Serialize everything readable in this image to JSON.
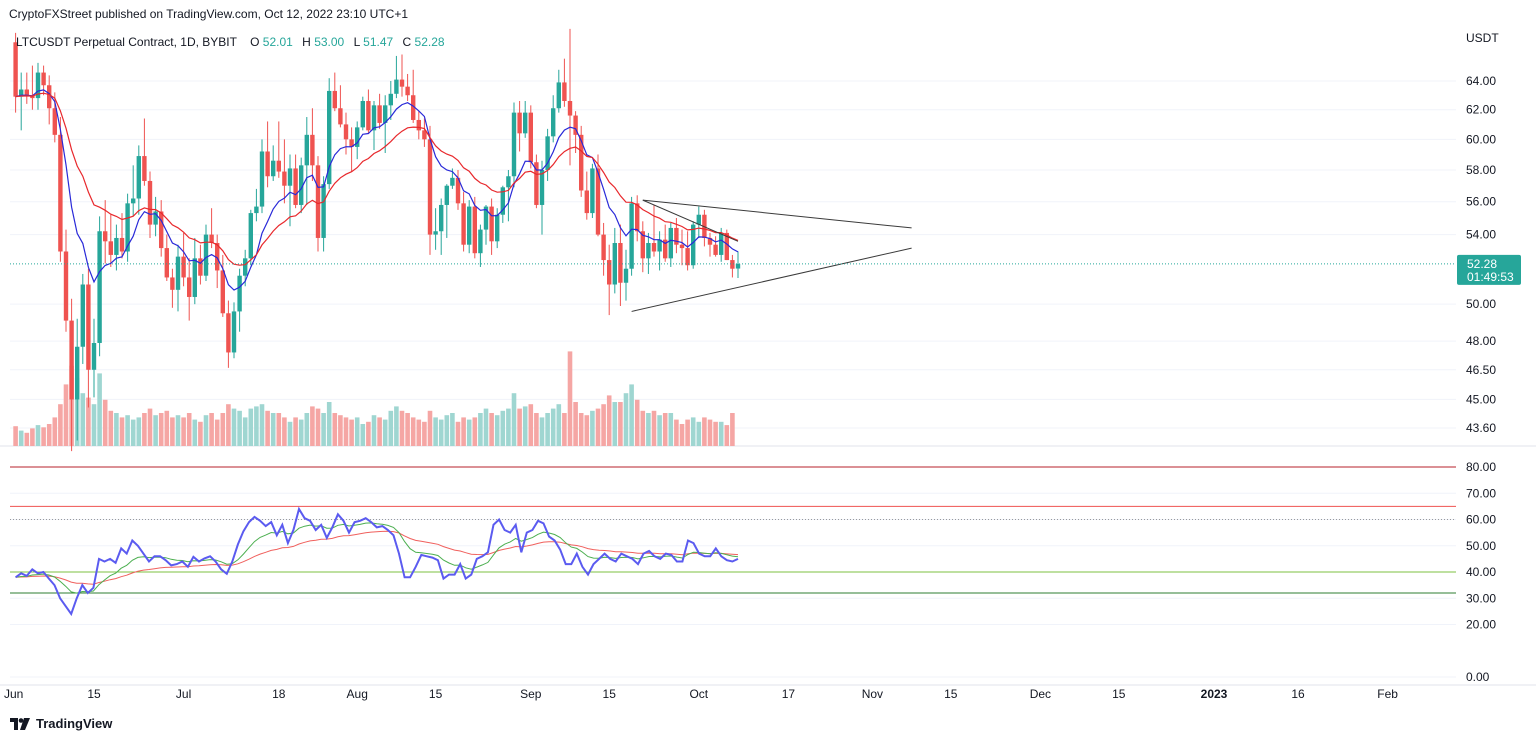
{
  "header": {
    "published_line": "CryptoFXStreet published on TradingView.com, Oct 12, 2022 23:10 UTC+1"
  },
  "legend": {
    "symbol_line": "LTCUSDT Perpetual Contract, 1D, BYBIT",
    "open_label": "O",
    "open_value": "52.01",
    "high_label": "H",
    "high_value": "53.00",
    "low_label": "L",
    "low_value": "51.47",
    "close_label": "C",
    "close_value": "52.28"
  },
  "price_axis": {
    "currency": "USDT",
    "ticks": [
      "64.00",
      "62.00",
      "60.00",
      "58.00",
      "56.00",
      "54.00",
      "50.00",
      "48.00",
      "46.50",
      "45.00",
      "43.60"
    ],
    "last_price": "52.28",
    "countdown": "01:49:53"
  },
  "rsi_axis": {
    "ticks": [
      "80.00",
      "70.00",
      "60.00",
      "50.00",
      "40.00",
      "30.00",
      "20.00",
      "0.00"
    ]
  },
  "time_axis": {
    "ticks": [
      "Jun",
      "15",
      "Jul",
      "18",
      "Aug",
      "15",
      "Sep",
      "15",
      "Oct",
      "17",
      "Nov",
      "15",
      "Dec",
      "15",
      "2023",
      "16",
      "Feb"
    ]
  },
  "footer": {
    "brand": "TradingView"
  },
  "colors": {
    "up": "#26a69a",
    "down": "#ef5350",
    "up_volume": "#9fd6d1",
    "down_volume": "#f5a6a4",
    "ema_fast": "#2929d8",
    "ema_slow": "#e8282c",
    "rsi_line": "#5b5bf0",
    "rsi_signal_green": "#4caf50",
    "rsi_signal_red": "#f0605d"
  },
  "chart_data": [
    {
      "type": "candlestick",
      "title": "LTCUSDT Perpetual Contract, 1D, BYBIT",
      "ylabel": "USDT",
      "y_scale": "log",
      "x_range": [
        "2022-06-01",
        "2023-02-15"
      ],
      "ylim": [
        43.0,
        68.0
      ],
      "last_price": 52.28,
      "candles": [
        [
          66.8,
          67.5,
          61.8,
          62.9
        ],
        [
          62.9,
          64.6,
          60.6,
          63.4
        ],
        [
          63.4,
          64.6,
          62.4,
          63.0
        ],
        [
          63.0,
          65.1,
          62.0,
          62.8
        ],
        [
          62.8,
          65.3,
          62.0,
          64.6
        ],
        [
          64.6,
          65.1,
          63.0,
          63.7
        ],
        [
          63.7,
          64.4,
          61.0,
          62.1
        ],
        [
          62.1,
          63.2,
          59.8,
          60.3
        ],
        [
          60.3,
          61.5,
          52.4,
          53.0
        ],
        [
          53.0,
          54.3,
          48.5,
          49.1
        ],
        [
          49.1,
          50.3,
          42.5,
          45.0
        ],
        [
          45.0,
          49.2,
          43.0,
          47.7
        ],
        [
          47.7,
          51.7,
          46.8,
          51.1
        ],
        [
          51.1,
          52.0,
          44.6,
          46.5
        ],
        [
          46.5,
          49.2,
          45.1,
          47.9
        ],
        [
          47.9,
          55.1,
          47.2,
          54.2
        ],
        [
          54.2,
          56.1,
          52.3,
          53.6
        ],
        [
          53.6,
          55.2,
          52.1,
          52.8
        ],
        [
          52.8,
          54.6,
          51.9,
          53.8
        ],
        [
          53.8,
          55.3,
          52.6,
          53.0
        ],
        [
          53.0,
          56.5,
          52.4,
          55.9
        ],
        [
          55.9,
          58.3,
          55.1,
          56.2
        ],
        [
          56.2,
          59.6,
          55.2,
          58.9
        ],
        [
          58.9,
          61.4,
          57.0,
          57.3
        ],
        [
          57.3,
          57.9,
          53.8,
          54.6
        ],
        [
          54.6,
          56.3,
          53.9,
          55.4
        ],
        [
          55.4,
          56.1,
          52.7,
          53.2
        ],
        [
          53.2,
          54.0,
          51.3,
          51.5
        ],
        [
          51.5,
          52.0,
          49.8,
          50.8
        ],
        [
          50.8,
          53.4,
          49.6,
          52.7
        ],
        [
          52.7,
          54.1,
          51.0,
          51.5
        ],
        [
          51.5,
          52.6,
          49.1,
          50.4
        ],
        [
          50.4,
          53.8,
          50.0,
          52.6
        ],
        [
          52.6,
          53.4,
          51.1,
          51.6
        ],
        [
          51.6,
          54.6,
          51.3,
          54.0
        ],
        [
          54.0,
          55.6,
          53.2,
          53.5
        ],
        [
          53.5,
          54.0,
          50.9,
          51.9
        ],
        [
          51.9,
          52.8,
          49.3,
          49.5
        ],
        [
          49.5,
          50.2,
          46.6,
          47.4
        ],
        [
          47.4,
          50.1,
          47.1,
          49.6
        ],
        [
          49.6,
          52.0,
          48.5,
          51.6
        ],
        [
          51.6,
          53.1,
          51.0,
          52.6
        ],
        [
          52.6,
          55.5,
          52.2,
          55.3
        ],
        [
          55.3,
          56.8,
          54.8,
          55.7
        ],
        [
          55.7,
          60.0,
          55.3,
          59.2
        ],
        [
          59.2,
          61.2,
          56.9,
          57.6
        ],
        [
          57.6,
          59.6,
          57.3,
          58.6
        ],
        [
          58.6,
          61.2,
          57.5,
          57.9
        ],
        [
          57.9,
          60.0,
          55.9,
          57.0
        ],
        [
          57.0,
          59.0,
          54.5,
          58.1
        ],
        [
          58.1,
          59.0,
          55.6,
          55.8
        ],
        [
          55.8,
          58.8,
          55.3,
          58.3
        ],
        [
          58.3,
          61.5,
          55.8,
          60.3
        ],
        [
          60.3,
          62.1,
          57.3,
          58.3
        ],
        [
          58.3,
          58.9,
          53.0,
          53.8
        ],
        [
          53.8,
          57.6,
          53.0,
          57.1
        ],
        [
          57.1,
          64.2,
          56.8,
          63.3
        ],
        [
          63.3,
          64.6,
          61.9,
          62.1
        ],
        [
          62.1,
          63.7,
          60.8,
          61.0
        ],
        [
          61.0,
          61.8,
          59.0,
          60.0
        ],
        [
          60.0,
          60.8,
          57.9,
          59.5
        ],
        [
          59.5,
          61.2,
          58.7,
          60.8
        ],
        [
          60.8,
          62.9,
          60.6,
          62.6
        ],
        [
          62.6,
          63.4,
          60.4,
          60.6
        ],
        [
          60.6,
          62.6,
          59.3,
          62.3
        ],
        [
          62.3,
          63.1,
          60.7,
          61.1
        ],
        [
          61.1,
          63.0,
          59.1,
          62.3
        ],
        [
          62.3,
          64.0,
          61.3,
          63.1
        ],
        [
          63.1,
          65.8,
          62.8,
          64.1
        ],
        [
          64.1,
          65.9,
          62.9,
          63.6
        ],
        [
          63.6,
          64.5,
          62.6,
          63.0
        ],
        [
          63.0,
          64.8,
          61.1,
          61.3
        ],
        [
          61.3,
          61.9,
          60.0,
          60.6
        ],
        [
          60.6,
          61.4,
          59.5,
          60.0
        ],
        [
          60.0,
          60.9,
          52.8,
          54.0
        ],
        [
          54.0,
          55.6,
          53.1,
          54.2
        ],
        [
          54.2,
          56.2,
          52.8,
          55.8
        ],
        [
          55.8,
          57.1,
          53.8,
          57.0
        ],
        [
          57.0,
          58.1,
          56.8,
          57.5
        ],
        [
          57.5,
          58.0,
          55.5,
          55.9
        ],
        [
          55.9,
          56.6,
          53.0,
          53.4
        ],
        [
          53.4,
          56.1,
          52.9,
          55.7
        ],
        [
          55.7,
          56.3,
          52.6,
          52.9
        ],
        [
          52.9,
          54.6,
          52.1,
          54.3
        ],
        [
          54.3,
          55.8,
          53.4,
          55.7
        ],
        [
          55.7,
          56.2,
          52.8,
          53.6
        ],
        [
          53.6,
          55.6,
          53.2,
          55.2
        ],
        [
          55.2,
          57.0,
          54.7,
          56.9
        ],
        [
          56.9,
          58.0,
          54.8,
          57.6
        ],
        [
          57.6,
          62.5,
          56.9,
          61.8
        ],
        [
          61.8,
          62.6,
          59.2,
          60.4
        ],
        [
          60.4,
          62.6,
          60.1,
          61.8
        ],
        [
          61.8,
          62.3,
          58.1,
          58.5
        ],
        [
          58.5,
          59.0,
          55.6,
          55.8
        ],
        [
          55.8,
          58.6,
          54.0,
          58.0
        ],
        [
          58.0,
          60.7,
          57.3,
          60.2
        ],
        [
          60.2,
          63.0,
          59.8,
          62.1
        ],
        [
          62.1,
          64.8,
          61.8,
          63.9
        ],
        [
          63.9,
          65.6,
          62.2,
          62.6
        ],
        [
          62.6,
          67.8,
          58.3,
          61.6
        ],
        [
          61.6,
          61.9,
          59.1,
          60.3
        ],
        [
          60.3,
          60.9,
          56.3,
          56.7
        ],
        [
          56.7,
          57.9,
          54.9,
          55.3
        ],
        [
          55.3,
          58.4,
          55.0,
          58.1
        ],
        [
          58.1,
          59.0,
          53.9,
          54.0
        ],
        [
          54.0,
          54.7,
          51.6,
          52.5
        ],
        [
          52.5,
          53.4,
          49.4,
          51.1
        ],
        [
          51.1,
          54.4,
          50.6,
          53.5
        ],
        [
          53.5,
          54.6,
          49.9,
          51.2
        ],
        [
          51.2,
          53.1,
          50.2,
          52.0
        ],
        [
          52.0,
          56.3,
          51.6,
          55.9
        ],
        [
          55.9,
          56.4,
          53.6,
          54.2
        ],
        [
          54.2,
          54.8,
          51.8,
          52.6
        ],
        [
          52.6,
          54.1,
          51.7,
          53.5
        ],
        [
          53.5,
          55.8,
          52.7,
          53.0
        ],
        [
          53.0,
          54.2,
          51.9,
          53.7
        ],
        [
          53.7,
          54.6,
          52.4,
          52.6
        ],
        [
          52.6,
          54.7,
          52.1,
          54.4
        ],
        [
          54.4,
          55.0,
          52.9,
          53.4
        ],
        [
          53.4,
          54.3,
          52.2,
          53.2
        ],
        [
          53.2,
          54.2,
          51.9,
          52.2
        ],
        [
          52.2,
          54.8,
          52.0,
          54.6
        ],
        [
          54.6,
          55.7,
          53.8,
          55.2
        ],
        [
          55.2,
          55.5,
          53.3,
          53.8
        ],
        [
          53.8,
          54.1,
          52.7,
          53.4
        ],
        [
          53.4,
          53.9,
          52.7,
          52.8
        ],
        [
          52.8,
          54.4,
          52.4,
          54.1
        ],
        [
          54.1,
          54.3,
          52.5,
          52.5
        ],
        [
          52.5,
          52.8,
          51.5,
          52.0
        ],
        [
          52.01,
          53.0,
          51.47,
          52.28
        ]
      ],
      "volumes": [
        0.18,
        0.14,
        0.12,
        0.16,
        0.19,
        0.17,
        0.2,
        0.26,
        0.38,
        0.56,
        0.73,
        0.62,
        0.48,
        0.44,
        0.38,
        0.66,
        0.42,
        0.32,
        0.3,
        0.26,
        0.28,
        0.24,
        0.26,
        0.3,
        0.34,
        0.28,
        0.3,
        0.32,
        0.26,
        0.28,
        0.26,
        0.3,
        0.24,
        0.22,
        0.28,
        0.3,
        0.24,
        0.3,
        0.38,
        0.34,
        0.32,
        0.26,
        0.34,
        0.36,
        0.38,
        0.32,
        0.3,
        0.3,
        0.26,
        0.22,
        0.26,
        0.24,
        0.3,
        0.36,
        0.34,
        0.3,
        0.4,
        0.3,
        0.28,
        0.26,
        0.24,
        0.26,
        0.2,
        0.22,
        0.28,
        0.26,
        0.24,
        0.32,
        0.36,
        0.32,
        0.3,
        0.26,
        0.24,
        0.22,
        0.32,
        0.26,
        0.24,
        0.28,
        0.3,
        0.22,
        0.26,
        0.24,
        0.26,
        0.3,
        0.34,
        0.3,
        0.28,
        0.32,
        0.34,
        0.48,
        0.34,
        0.36,
        0.38,
        0.3,
        0.26,
        0.3,
        0.34,
        0.38,
        0.3,
        0.86,
        0.4,
        0.3,
        0.28,
        0.32,
        0.34,
        0.38,
        0.46,
        0.4,
        0.4,
        0.48,
        0.56,
        0.42,
        0.32,
        0.3,
        0.32,
        0.28,
        0.3,
        0.3,
        0.24,
        0.2,
        0.24,
        0.26,
        0.22,
        0.26,
        0.24,
        0.22,
        0.22,
        0.19,
        0.3
      ],
      "overlays": [
        {
          "type": "ema",
          "color": "#2929d8",
          "period": 9
        },
        {
          "type": "ema",
          "color": "#e8282c",
          "period": 21
        }
      ],
      "trendlines": [
        {
          "from": [
            "2022-09-21",
            56.1
          ],
          "to": [
            "2022-11-08",
            54.4
          ]
        },
        {
          "from": [
            "2022-09-19",
            49.6
          ],
          "to": [
            "2022-11-08",
            53.2
          ]
        },
        {
          "from": [
            "2022-09-21",
            56.1
          ],
          "to": [
            "2022-10-08",
            53.6
          ]
        }
      ]
    },
    {
      "type": "line",
      "ylim": [
        0,
        80
      ],
      "hlines": [
        {
          "y": 80,
          "color": "#b7222b"
        },
        {
          "y": 65,
          "color": "#ef5350"
        },
        {
          "y": 60,
          "color": "#9a9a9a"
        },
        {
          "y": 40,
          "color": "#7cc242"
        },
        {
          "y": 32,
          "color": "#2e7d32"
        }
      ],
      "series": [
        {
          "color": "#5b5bf0",
          "values": [
            38,
            39.5,
            38.5,
            41,
            39.5,
            40,
            37.5,
            35,
            30,
            27,
            24,
            30,
            35,
            32,
            34,
            45,
            44,
            45,
            43.5,
            49,
            47,
            52,
            50,
            47,
            44,
            46,
            46,
            44.5,
            42.5,
            43,
            44,
            42,
            45.8,
            44,
            45.2,
            46,
            44,
            41,
            39.3,
            44,
            50.5,
            55.5,
            59,
            61,
            59.5,
            57.5,
            59,
            54,
            58,
            51,
            56,
            64,
            60.5,
            59.5,
            56,
            58,
            53,
            57,
            62,
            59.5,
            55,
            59,
            59.5,
            60.5,
            59,
            57,
            57.5,
            56,
            54,
            47,
            38,
            38,
            42,
            46.5,
            46,
            45.5,
            44.5,
            37.5,
            39,
            39,
            43,
            37.5,
            39,
            45,
            46,
            47.5,
            58,
            60,
            56,
            55,
            58,
            47.5,
            55,
            56,
            59.5,
            58.5,
            53.5,
            52,
            48.5,
            43,
            43,
            47,
            42,
            39,
            43,
            45,
            47,
            45,
            44,
            47,
            46,
            45,
            43,
            47,
            48,
            46,
            45,
            47,
            46.5,
            44,
            44,
            52,
            51,
            47,
            46,
            46,
            49,
            46,
            44.5,
            44,
            45
          ]
        },
        {
          "color": "#4caf50",
          "values": []
        },
        {
          "color": "#f0605d",
          "values": []
        }
      ]
    }
  ]
}
